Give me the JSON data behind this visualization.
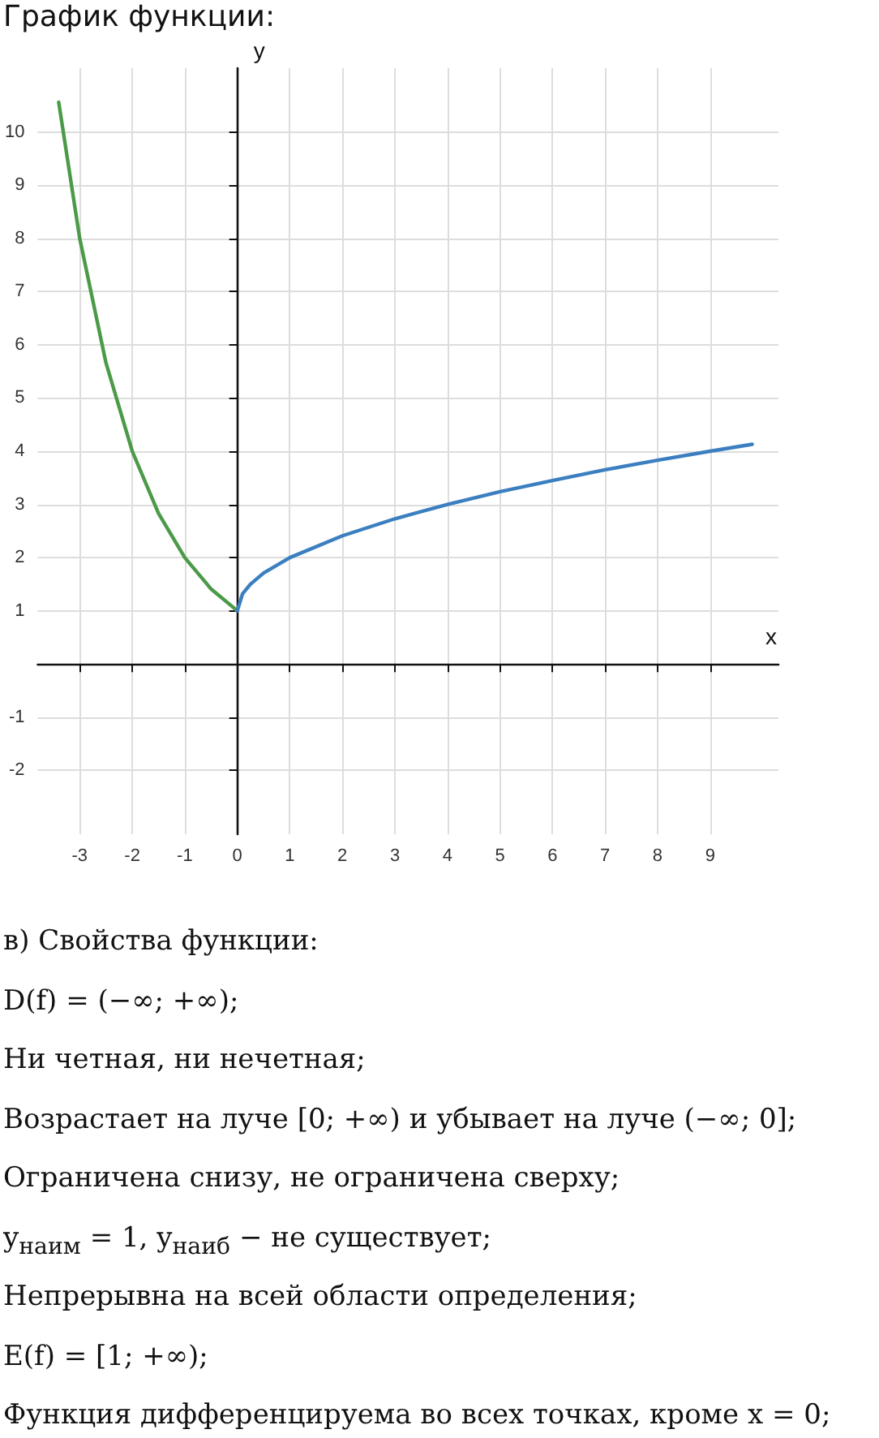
{
  "chart_data": {
    "type": "line",
    "title": "График функции:",
    "xlabel": "x",
    "ylabel": "y",
    "series": [
      {
        "color": "#4b9a48",
        "x": [
          -3.4,
          -3,
          -2.5,
          -2,
          -1.5,
          -1,
          -0.5,
          0
        ],
        "values": [
          10.56,
          8,
          5.66,
          4,
          2.83,
          2,
          1.41,
          1
        ]
      },
      {
        "color": "#3b7fc0",
        "x": [
          0,
          0.1,
          0.25,
          0.5,
          1,
          2,
          3,
          4,
          5,
          6,
          7,
          8,
          9,
          9.8
        ],
        "values": [
          1,
          1.32,
          1.5,
          1.71,
          2,
          2.41,
          2.73,
          3,
          3.24,
          3.45,
          3.65,
          3.83,
          4,
          4.13
        ]
      }
    ],
    "xlim": [
      -3.8,
      10.3
    ],
    "ylim": [
      -3.2,
      11.2
    ],
    "xticks": [
      -3,
      -2,
      -1,
      0,
      1,
      2,
      3,
      4,
      5,
      6,
      7,
      8,
      9
    ],
    "yticks": [
      -2,
      -1,
      {
        "value": 0,
        "label": null
      },
      1,
      2,
      3,
      4,
      5,
      6,
      7,
      8,
      9,
      10
    ],
    "grid": true,
    "marker": "none",
    "line_style": "solid",
    "annotations": [
      "в) Свойства функции:",
      "D(f) = (−∞; +∞);",
      "Ни четная, ни нечетная;",
      "Возрастает на луче [0; +∞) и убывает на луче (−∞; 0];",
      "Ограничена снизу, не ограничена сверху;",
      "y$_{наим}$ = 1,  y$_{наиб}$ − не существует;",
      "Непрерывна на всей области определения;",
      "E(f) = [1; +∞);",
      "Функция дифференцируема во всех точках, кроме x = 0;"
    ]
  }
}
